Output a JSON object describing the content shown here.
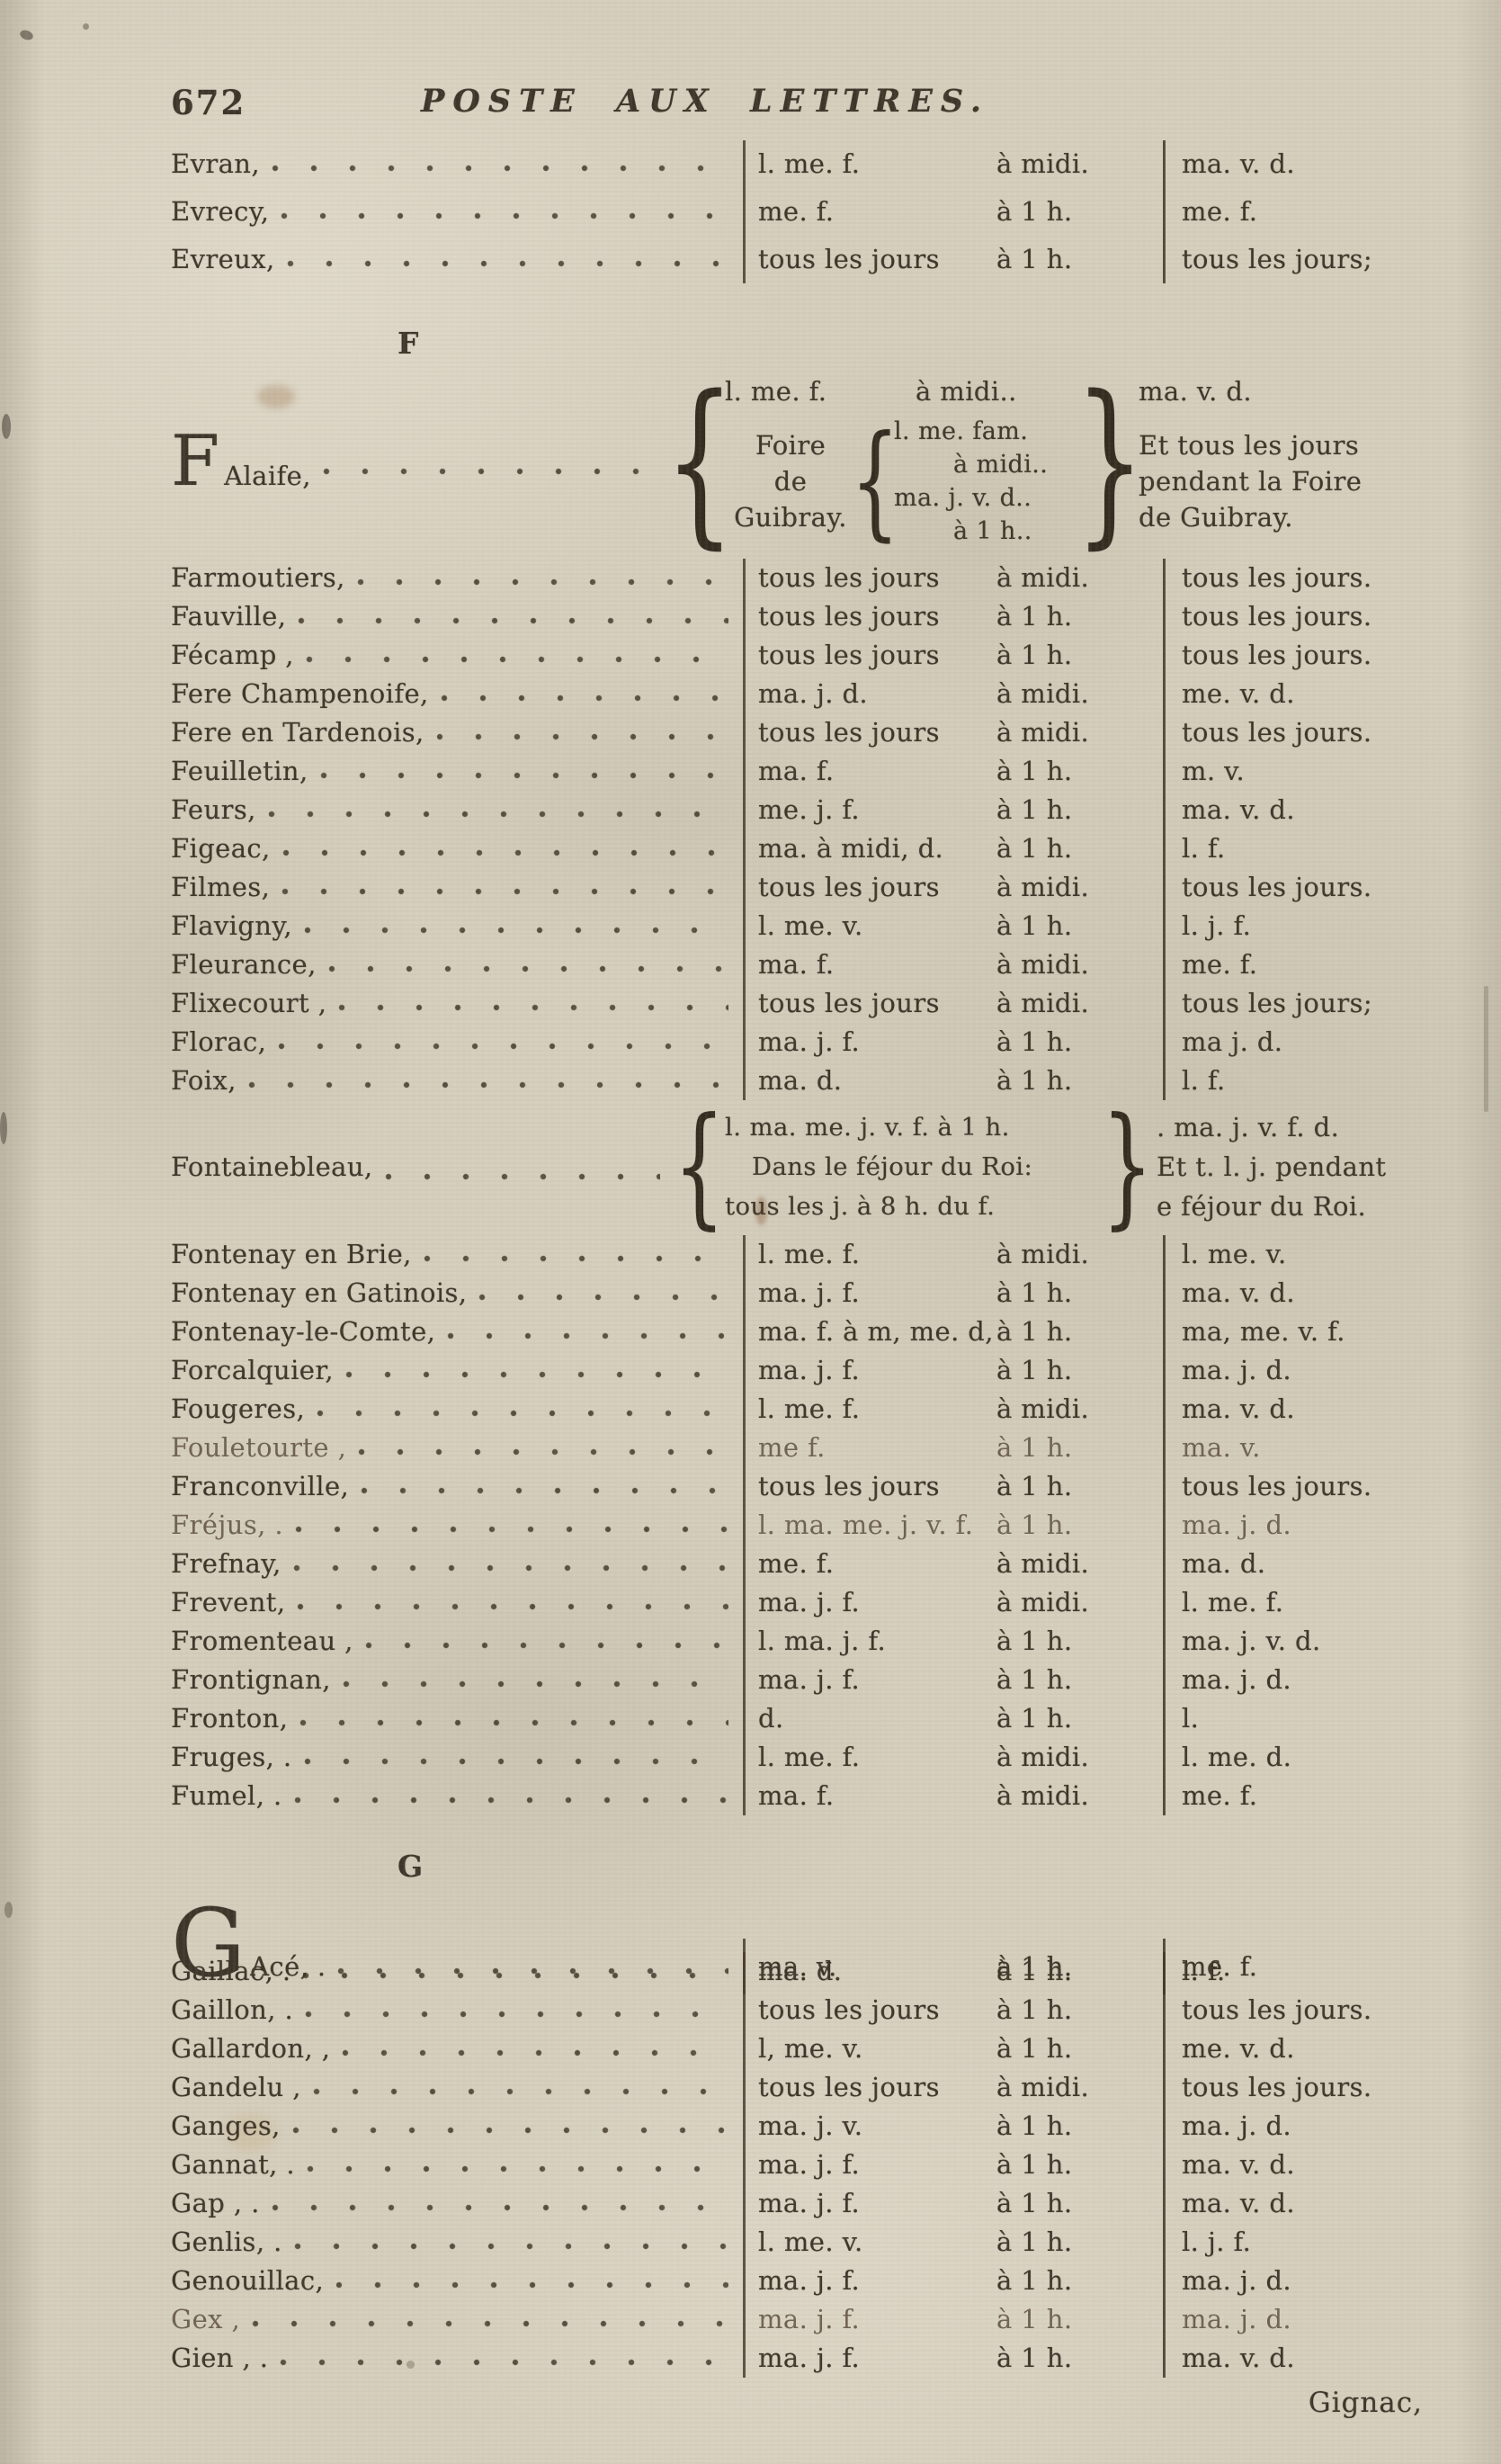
{
  "page": {
    "number": "672",
    "title": "POSTE AUX LETTRES.",
    "catchword": "Gignac,"
  },
  "colors": {
    "paper": "#d5cebd",
    "ink": "#3e352a",
    "rule": "#403629"
  },
  "sections": [
    {
      "letter": "",
      "rows": [
        {
          "name": "Evran,",
          "days": "l. me. f.",
          "time": "à midi.",
          "result": "ma. v. d."
        },
        {
          "name": "Evrecy,",
          "days": "me. f.",
          "time": "à 1 h.",
          "result": "me. f."
        },
        {
          "name": "Evreux,",
          "days": "tous les jours",
          "time": "à 1 h.",
          "result": "tous les jours;"
        }
      ]
    },
    {
      "letter": "F",
      "rows": [
        {
          "type": "falaise",
          "initial": "F",
          "rest": "Alaife,",
          "top_days": "l. me. f.",
          "top_time": "à midi..",
          "top_result": "ma. v. d.",
          "label": [
            "Foire",
            "de",
            "Guibray."
          ],
          "inner": [
            "l. me. fam.",
            "à midi..",
            "ma. j. v. d..",
            "à 1 h.."
          ],
          "right": [
            "Et tous les jours",
            "pendant la Foire",
            "de Guibray."
          ]
        },
        {
          "name": "Farmoutiers,",
          "days": "tous les jours",
          "time": "à midi.",
          "result": "tous les jours."
        },
        {
          "name": "Fauville,",
          "days": "tous les jours",
          "time": "à 1 h.",
          "result": "tous les jours."
        },
        {
          "name": "Fécamp ,",
          "days": "tous les jours",
          "time": "à 1 h.",
          "result": "tous les jours."
        },
        {
          "name": "Fere Champenoife,",
          "days": "ma. j. d.",
          "time": "à midi.",
          "result": "me. v. d."
        },
        {
          "name": "Fere en Tardenois,",
          "days": "tous les jours",
          "time": "à midi.",
          "result": "tous les jours."
        },
        {
          "name": "Feuilletin,",
          "days": "ma. f.",
          "time": "à 1 h.",
          "result": "m. v."
        },
        {
          "name": "Feurs,",
          "days": "me. j. f.",
          "time": "à 1 h.",
          "result": "ma. v. d."
        },
        {
          "name": "Figeac,",
          "days": "ma. à midi, d.",
          "time": "à 1 h.",
          "result": "l. f."
        },
        {
          "name": "Filmes,",
          "days": "tous les jours",
          "time": "à midi.",
          "result": "tous les jours."
        },
        {
          "name": "Flavigny,",
          "days": "l. me. v.",
          "time": "à 1 h.",
          "result": "l. j. f."
        },
        {
          "name": "Fleurance,",
          "days": "ma. f.",
          "time": "à midi.",
          "result": "me. f."
        },
        {
          "name": "Flixecourt ,",
          "days": "tous les jours",
          "time": "à midi.",
          "result": "tous les jours;"
        },
        {
          "name": "Florac,",
          "days": "ma. j. f.",
          "time": "à 1 h.",
          "result": "ma j. d."
        },
        {
          "name": "Foix,",
          "days": "ma. d.",
          "time": "à 1 h.",
          "result": "l. f."
        },
        {
          "type": "fontainebleau",
          "name": "Fontainebleau,",
          "middle": [
            "l. ma. me. j. v. f. à 1 h.",
            "Dans le féjour du Roi:",
            "tous les j. à 8 h. du f."
          ],
          "right": [
            ". ma. j. v. f. d.",
            "Et t. l. j. pendant",
            "e féjour du Roi."
          ]
        },
        {
          "name": "Fontenay en Brie,",
          "days": "l. me. f.",
          "time": "à midi.",
          "result": "l. me. v."
        },
        {
          "name": "Fontenay en Gatinois,",
          "days": "ma. j. f.",
          "time": "à 1 h.",
          "result": "ma. v. d."
        },
        {
          "name": "Fontenay-le-Comte,",
          "days": "ma. f. à m, me. d,",
          "time": "à 1 h.",
          "result": "ma, me. v. f."
        },
        {
          "name": "Forcalquier,",
          "days": "ma. j. f.",
          "time": "à 1 h.",
          "result": "ma. j. d."
        },
        {
          "name": "Fougeres,",
          "days": "l. me. f.",
          "time": "à midi.",
          "result": "ma. v. d."
        },
        {
          "name": "Fouletourte ,",
          "days": "me f.",
          "time": "à 1 h.",
          "result": "ma. v.",
          "faint": true
        },
        {
          "name": "Franconville,",
          "days": "tous les jours",
          "time": "à 1 h.",
          "result": "tous les jours."
        },
        {
          "name": "Fréjus, .",
          "days": "l. ma. me. j. v. f.",
          "time": "à 1 h.",
          "result": "ma. j. d.",
          "faint": true
        },
        {
          "name": "Frefnay,",
          "days": "me. f.",
          "time": "à midi.",
          "result": "ma. d."
        },
        {
          "name": "Frevent,",
          "days": "ma. j. f.",
          "time": "à midi.",
          "result": "l. me. f."
        },
        {
          "name": "Fromenteau ,",
          "days": "l. ma. j. f.",
          "time": "à 1 h.",
          "result": "ma. j. v. d."
        },
        {
          "name": "Frontignan,",
          "days": "ma. j. f.",
          "time": "à 1 h.",
          "result": "ma. j. d."
        },
        {
          "name": "Fronton,",
          "days": "d.",
          "time": "à 1 h.",
          "result": "l."
        },
        {
          "name": "Fruges, .",
          "days": "l. me. f.",
          "time": "à midi.",
          "result": "l. me. d."
        },
        {
          "name": "Fumel, .",
          "days": "ma. f.",
          "time": "à midi.",
          "result": "me. f."
        }
      ]
    },
    {
      "letter": "G",
      "rows": [
        {
          "initial": "G",
          "rest": "Acé, .",
          "days": "ma. v.",
          "time": "à 1 h.",
          "result": "me. f."
        },
        {
          "name": "Gaillac, .",
          "days": "ma. d.",
          "time": "à 1 h.",
          "result": "l. f."
        },
        {
          "name": "Gaillon, .",
          "days": "tous les jours",
          "time": "à 1 h.",
          "result": "tous les jours."
        },
        {
          "name": "Gallardon, ,",
          "days": "l, me. v.",
          "time": "à 1 h.",
          "result": "me. v. d."
        },
        {
          "name": "Gandelu ,",
          "days": "tous les jours",
          "time": "à midi.",
          "result": "tous les jours."
        },
        {
          "name": "Ganges,",
          "days": "ma. j. v.",
          "time": "à 1 h.",
          "result": "ma. j. d."
        },
        {
          "name": "Gannat, .",
          "days": "ma. j. f.",
          "time": "à 1 h.",
          "result": "ma. v. d."
        },
        {
          "name": "Gap , .",
          "days": "ma. j. f.",
          "time": "à 1 h.",
          "result": "ma. v. d."
        },
        {
          "name": "Genlis, .",
          "days": "l. me. v.",
          "time": "à 1 h.",
          "result": "l. j. f."
        },
        {
          "name": "Genouillac,",
          "days": "ma. j. f.",
          "time": "à 1 h.",
          "result": "ma. j. d."
        },
        {
          "name": "Gex ,",
          "days": "ma. j. f.",
          "time": "à 1 h.",
          "result": "ma. j. d.",
          "faint": true
        },
        {
          "name": "Gien , .",
          "days": "ma. j. f.",
          "time": "à 1 h.",
          "result": "ma. v. d."
        }
      ]
    }
  ]
}
